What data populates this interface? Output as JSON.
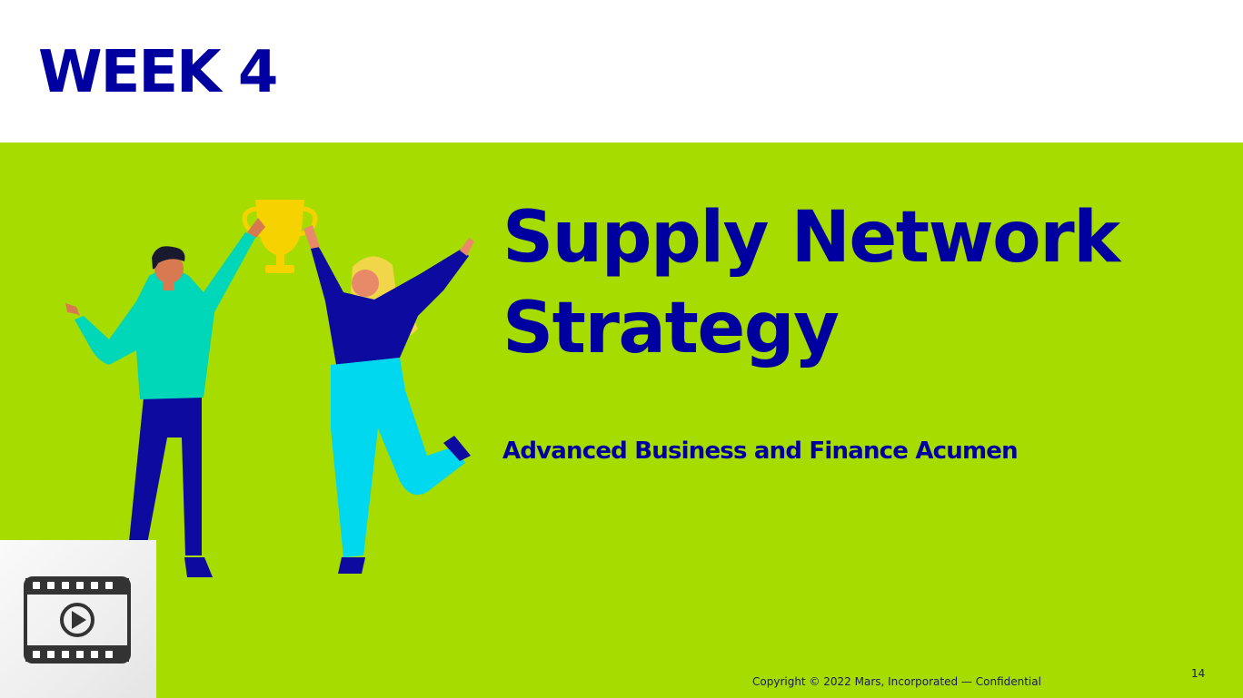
{
  "slide": {
    "week_label": "WEEK 4",
    "title_line1": "Supply Network",
    "title_line2": "Strategy",
    "subtitle": "Advanced Business and Finance Acumen",
    "copyright": "Copyright © 2022 Mars, Incorporated — Confidential",
    "page_number": "14"
  },
  "illustration": {
    "icon": "celebrating-people-with-trophy"
  },
  "video": {
    "icon": "video-play-icon"
  },
  "colors": {
    "accent_green": "#a6dc00",
    "brand_blue": "#0000a0",
    "header_bg": "#ffffff"
  }
}
